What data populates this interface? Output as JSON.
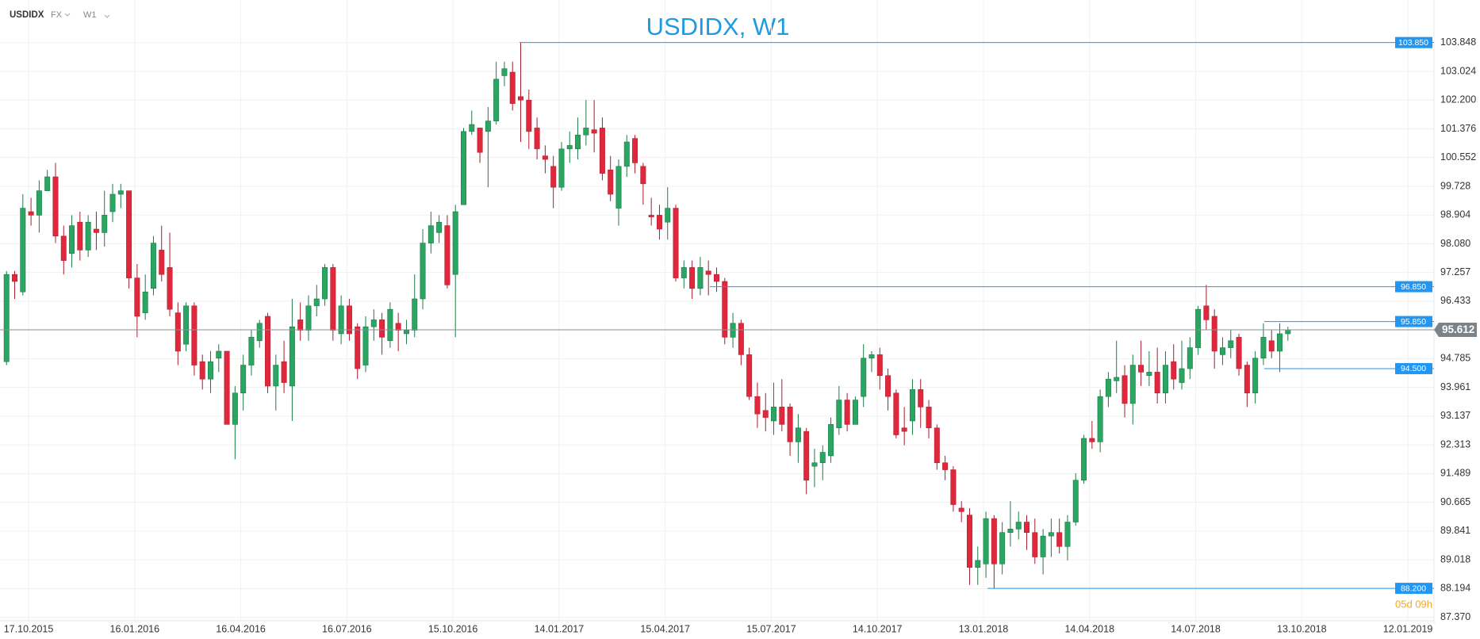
{
  "toolbar": {
    "symbol": "USDIDX",
    "market": "FX",
    "timeframe": "W1"
  },
  "chart_data": {
    "type": "candlestick",
    "title": "USDIDX, W1",
    "up_color": "#2aa562",
    "down_color": "#e0283d",
    "level_color": "#2196f3",
    "grid": true,
    "xlim": [
      -0.8,
      174.9
    ],
    "xticks": [
      {
        "value": 2.7,
        "label": "17.10.2015"
      },
      {
        "value": 15.7,
        "label": "16.01.2016"
      },
      {
        "value": 28.7,
        "label": "16.04.2016"
      },
      {
        "value": 41.7,
        "label": "16.07.2016"
      },
      {
        "value": 54.7,
        "label": "15.10.2016"
      },
      {
        "value": 67.7,
        "label": "14.01.2017"
      },
      {
        "value": 80.7,
        "label": "15.04.2017"
      },
      {
        "value": 93.7,
        "label": "15.07.2017"
      },
      {
        "value": 106.7,
        "label": "14.10.2017"
      },
      {
        "value": 119.7,
        "label": "13.01.2018"
      },
      {
        "value": 132.7,
        "label": "14.04.2018"
      },
      {
        "value": 145.7,
        "label": "14.07.2018"
      },
      {
        "value": 158.7,
        "label": "13.10.2018"
      },
      {
        "value": 171.7,
        "label": "12.01.2019"
      }
    ],
    "ylim": [
      87.27,
      105.07
    ],
    "yticks": [
      103.848,
      103.024,
      {
        "value": 102.2,
        "label": "102.200"
      },
      101.376,
      100.552,
      99.728,
      98.904,
      {
        "value": 98.08,
        "label": "98.080"
      },
      97.257,
      96.433,
      94.785,
      93.961,
      93.137,
      92.313,
      91.489,
      90.665,
      89.841,
      89.018,
      88.194,
      {
        "value": 87.37,
        "label": "87.370"
      }
    ],
    "open": [
      94.7,
      97.2,
      96.7,
      99.0,
      98.9,
      99.6,
      100.0,
      98.3,
      97.8,
      98.7,
      97.9,
      98.5,
      98.4,
      99.0,
      99.5,
      99.6,
      97.1,
      96.1,
      96.8,
      97.9,
      97.4,
      96.1,
      95.2,
      96.3,
      94.7,
      94.2,
      94.8,
      95.0,
      92.9,
      93.8,
      94.6,
      95.3,
      96.0,
      94.0,
      94.7,
      94.0,
      95.9,
      95.6,
      96.3,
      96.5,
      97.4,
      95.5,
      96.3,
      95.7,
      94.6,
      95.7,
      95.9,
      95.3,
      95.8,
      95.5,
      95.6,
      96.5,
      98.1,
      98.4,
      98.6,
      97.2,
      99.2,
      101.3,
      101.4,
      101.3,
      101.6,
      102.9,
      103.0,
      102.3,
      102.2,
      101.4,
      100.6,
      100.3,
      99.7,
      100.8,
      100.8,
      101.2,
      101.35,
      101.4,
      100.2,
      99.1,
      100.3,
      101.1,
      100.3,
      98.9,
      98.9,
      98.7,
      99.1,
      97.1,
      97.4,
      96.8,
      97.3,
      97.2,
      97.0,
      95.4,
      95.8,
      94.9,
      93.7,
      93.3,
      93.0,
      93.4,
      93.4,
      92.4,
      92.7,
      91.7,
      91.8,
      92.0,
      92.8,
      93.6,
      92.9,
      93.7,
      94.8,
      94.9,
      94.3,
      93.8,
      92.8,
      93.0,
      93.9,
      93.4,
      92.8,
      91.8,
      91.6,
      90.5,
      90.3,
      88.8,
      88.9,
      90.2,
      88.9,
      89.8,
      89.9,
      90.1,
      89.8,
      89.1,
      89.7,
      89.8,
      89.4,
      90.1,
      91.3,
      92.5,
      92.4,
      93.7,
      94.15,
      94.3,
      93.5,
      94.6,
      94.3,
      94.4,
      93.8,
      94.7,
      94.1,
      94.5,
      95.1,
      96.3,
      96.0,
      94.9,
      95.1,
      95.4,
      94.6,
      93.8,
      94.8,
      95.3,
      95.0,
      95.5
    ],
    "high": [
      97.3,
      97.3,
      99.5,
      99.4,
      99.9,
      100.2,
      100.4,
      98.6,
      98.9,
      99.0,
      98.9,
      99.0,
      99.6,
      99.8,
      99.8,
      99.6,
      97.5,
      97.2,
      98.3,
      98.6,
      98.4,
      96.4,
      96.4,
      96.4,
      94.9,
      95.0,
      95.2,
      95.0,
      94.0,
      94.9,
      95.6,
      95.9,
      96.1,
      94.9,
      95.3,
      96.5,
      96.4,
      96.6,
      96.9,
      97.5,
      97.5,
      96.6,
      96.5,
      95.8,
      96.0,
      96.2,
      96.1,
      96.4,
      96.1,
      95.9,
      97.2,
      98.5,
      99.0,
      98.9,
      98.9,
      99.2,
      101.4,
      101.9,
      101.4,
      102.0,
      103.3,
      103.3,
      103.3,
      103.85,
      102.5,
      101.7,
      100.9,
      100.6,
      101.0,
      101.3,
      101.7,
      102.2,
      102.2,
      101.7,
      100.6,
      100.5,
      101.2,
      101.2,
      100.4,
      99.4,
      99.2,
      99.7,
      99.2,
      97.6,
      97.6,
      97.7,
      97.6,
      97.4,
      97.1,
      96.1,
      95.9,
      95.1,
      94.1,
      93.8,
      94.1,
      94.2,
      93.5,
      93.2,
      92.8,
      92.2,
      92.3,
      93.1,
      94.0,
      93.8,
      93.7,
      95.2,
      95.0,
      95.1,
      94.5,
      93.9,
      93.4,
      94.2,
      94.2,
      93.6,
      92.9,
      92.0,
      91.7,
      90.7,
      90.5,
      89.4,
      90.4,
      90.3,
      90.1,
      90.7,
      90.4,
      90.3,
      90.2,
      89.9,
      90.2,
      90.2,
      90.3,
      91.5,
      92.6,
      93.0,
      93.9,
      94.4,
      95.3,
      94.6,
      94.9,
      95.3,
      95.0,
      95.1,
      95.0,
      95.2,
      95.3,
      95.4,
      96.3,
      96.9,
      96.2,
      95.4,
      95.6,
      95.5,
      94.7,
      95.0,
      95.8,
      95.6,
      95.8,
      95.7
    ],
    "low": [
      94.6,
      96.5,
      96.6,
      98.6,
      98.4,
      99.6,
      98.1,
      97.2,
      97.4,
      97.6,
      97.7,
      97.9,
      98.0,
      98.7,
      99.1,
      96.8,
      95.4,
      95.9,
      96.6,
      97.0,
      96.0,
      94.6,
      95.0,
      94.3,
      93.9,
      93.8,
      94.4,
      92.9,
      91.9,
      93.3,
      94.3,
      95.1,
      93.8,
      93.3,
      93.8,
      93.0,
      95.3,
      95.3,
      96.0,
      96.3,
      95.3,
      95.2,
      95.3,
      94.2,
      94.4,
      95.3,
      94.9,
      95.1,
      95.0,
      95.2,
      95.4,
      96.2,
      97.8,
      98.1,
      96.8,
      95.4,
      99.2,
      101.2,
      100.4,
      99.7,
      101.5,
      102.6,
      101.9,
      101.0,
      100.8,
      100.5,
      100.1,
      99.1,
      99.6,
      100.4,
      100.5,
      100.9,
      100.7,
      99.9,
      99.3,
      98.6,
      100.0,
      100.1,
      99.2,
      98.6,
      98.2,
      98.2,
      97.0,
      96.8,
      96.5,
      96.6,
      96.6,
      96.7,
      95.2,
      95.1,
      94.6,
      93.6,
      92.8,
      92.7,
      92.6,
      92.7,
      92.0,
      91.8,
      90.9,
      91.1,
      91.3,
      91.8,
      92.6,
      92.7,
      92.9,
      93.4,
      94.4,
      93.9,
      93.3,
      92.5,
      92.3,
      92.6,
      92.8,
      92.5,
      91.6,
      91.3,
      90.4,
      90.1,
      88.3,
      88.3,
      88.5,
      88.2,
      88.6,
      89.4,
      89.6,
      89.3,
      88.9,
      88.6,
      89.1,
      89.2,
      89.0,
      90.0,
      91.2,
      92.2,
      92.1,
      93.4,
      93.8,
      93.1,
      92.9,
      94.0,
      94.0,
      93.5,
      93.5,
      93.9,
      93.9,
      94.2,
      94.9,
      95.6,
      94.5,
      94.6,
      94.8,
      94.3,
      93.4,
      93.5,
      94.6,
      94.8,
      94.4,
      95.3
    ],
    "close": [
      97.2,
      97.0,
      99.1,
      98.9,
      99.6,
      100.0,
      98.3,
      97.6,
      98.6,
      97.9,
      98.7,
      98.4,
      98.9,
      99.5,
      99.6,
      97.1,
      96.0,
      96.7,
      98.1,
      97.2,
      96.2,
      95.0,
      96.3,
      94.6,
      94.2,
      94.7,
      95.0,
      92.9,
      93.8,
      94.6,
      95.4,
      95.8,
      94.0,
      94.6,
      94.1,
      95.7,
      95.6,
      96.3,
      96.5,
      97.4,
      95.6,
      96.3,
      95.5,
      94.5,
      95.7,
      95.9,
      95.4,
      96.2,
      95.6,
      95.6,
      96.5,
      98.1,
      98.6,
      98.7,
      96.9,
      99.0,
      101.3,
      101.5,
      100.7,
      101.6,
      102.8,
      103.1,
      102.1,
      102.2,
      101.3,
      100.8,
      100.5,
      99.7,
      100.8,
      100.9,
      101.2,
      101.4,
      101.25,
      100.1,
      99.5,
      100.3,
      101.0,
      100.4,
      99.8,
      98.85,
      98.5,
      99.1,
      97.1,
      97.4,
      96.8,
      97.4,
      97.2,
      97.0,
      95.4,
      95.8,
      94.9,
      93.7,
      93.2,
      93.1,
      93.4,
      92.9,
      92.4,
      92.8,
      91.3,
      91.8,
      92.1,
      92.9,
      93.6,
      92.9,
      93.6,
      94.8,
      94.9,
      94.3,
      93.7,
      92.6,
      92.7,
      93.9,
      93.4,
      92.8,
      91.8,
      91.6,
      90.6,
      90.4,
      88.8,
      89.0,
      90.2,
      88.9,
      89.8,
      89.9,
      90.1,
      89.8,
      89.1,
      89.7,
      89.8,
      89.4,
      90.1,
      91.3,
      92.5,
      92.4,
      93.7,
      94.2,
      94.25,
      93.5,
      94.6,
      94.4,
      94.4,
      93.8,
      94.6,
      94.2,
      94.5,
      95.1,
      96.2,
      95.9,
      95.0,
      95.1,
      95.3,
      94.5,
      93.8,
      94.8,
      95.4,
      95.0,
      95.5,
      95.612
    ],
    "levels": [
      {
        "value": 103.85,
        "label": "103.850"
      },
      {
        "value": 96.85,
        "label": "96.850"
      },
      {
        "value": 95.85,
        "label": "95.850"
      },
      {
        "value": 94.5,
        "label": "94.500"
      },
      {
        "value": 88.2,
        "label": "88.200"
      }
    ],
    "price": 95.612,
    "countdown": "05d 09h"
  }
}
